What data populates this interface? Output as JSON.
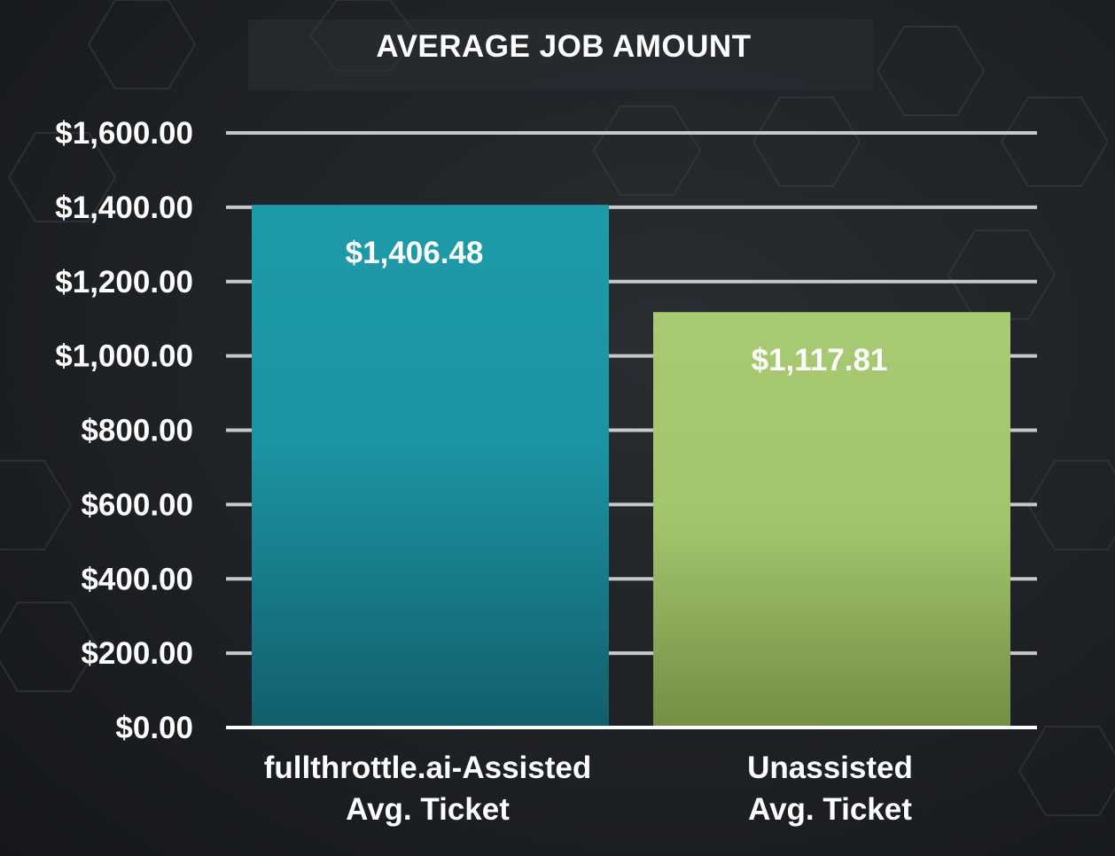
{
  "chart_data": {
    "type": "bar",
    "title": "AVERAGE JOB AMOUNT",
    "categories": [
      [
        "fullthrottle.ai-Assisted",
        "Avg. Ticket"
      ],
      [
        "Unassisted",
        "Avg. Ticket"
      ]
    ],
    "values": [
      1406.48,
      1117.81
    ],
    "value_labels": [
      "$1,406.48",
      "$1,117.81"
    ],
    "bar_colors": [
      "#1e97a6",
      "#a6c870"
    ],
    "ylim": [
      0,
      1600
    ],
    "yticks": [
      0,
      200,
      400,
      600,
      800,
      1000,
      1200,
      1400,
      1600
    ],
    "ytick_labels": [
      "$0.00",
      "$200.00",
      "$400.00",
      "$600.00",
      "$800.00",
      "$1,000.00",
      "$1,200.00",
      "$1,400.00",
      "$1,600.00"
    ],
    "xlabel": "",
    "ylabel": "",
    "grid": true,
    "legend": "none"
  }
}
